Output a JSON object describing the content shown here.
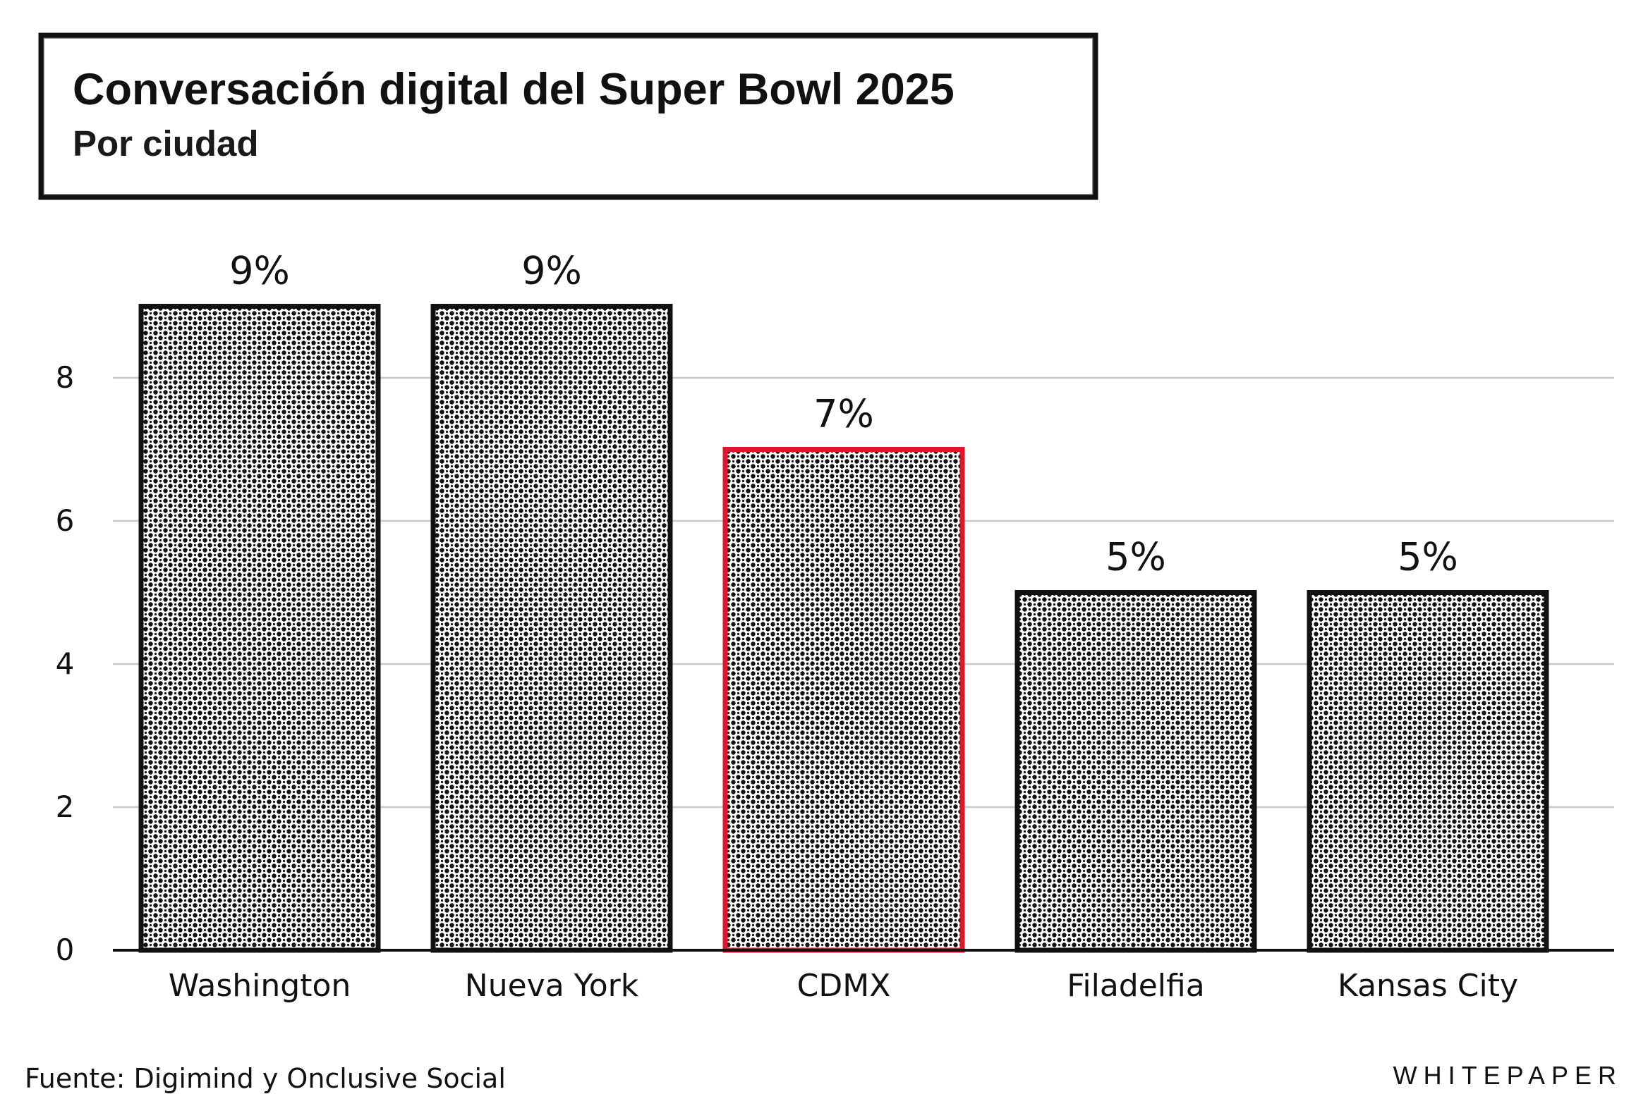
{
  "chart_data": {
    "type": "bar",
    "title": "Conversación digital del Super Bowl 2025",
    "subtitle": "Por ciudad",
    "categories": [
      "Washington",
      "Nueva York",
      "CDMX",
      "Filadelfia",
      "Kansas City"
    ],
    "values": [
      9,
      9,
      7,
      5,
      5
    ],
    "data_labels": [
      "9%",
      "9%",
      "7%",
      "5%",
      "5%"
    ],
    "highlight_category": "CDMX",
    "highlight_color": "#e3142b",
    "bar_color": "#111111",
    "bar_pattern": "halftone-dots",
    "ylim": [
      0,
      9
    ],
    "yticks": [
      0,
      2,
      4,
      6,
      8
    ],
    "xlabel": "",
    "ylabel": "",
    "grid": true,
    "legend": "none"
  },
  "footer": {
    "source": "Fuente: Digimind y Onclusive Social",
    "brand": "WHITEPAPER"
  }
}
